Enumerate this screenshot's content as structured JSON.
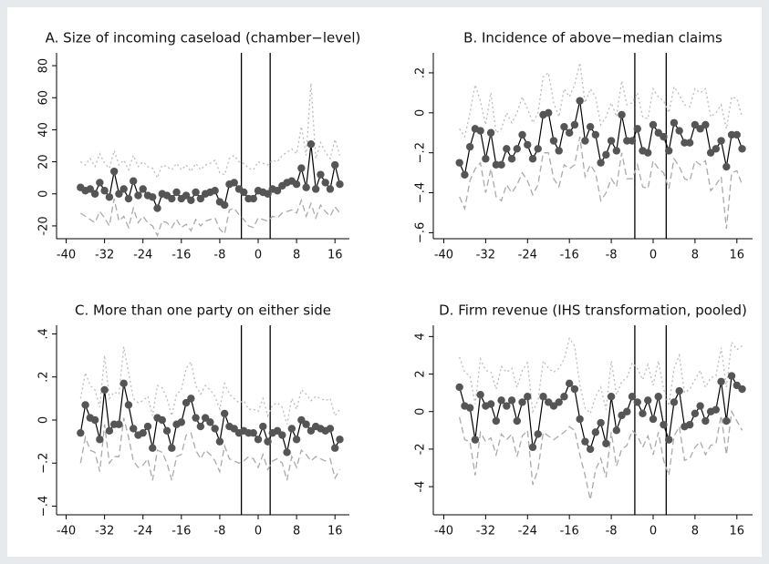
{
  "chart_data": [
    {
      "type": "line",
      "title": "A. Size of incoming caseload (chamber−level)",
      "x": [
        -37,
        -36,
        -35,
        -34,
        -33,
        -32,
        -31,
        -30,
        -29,
        -28,
        -27,
        -26,
        -25,
        -24,
        -23,
        -22,
        -21,
        -20,
        -19,
        -18,
        -17,
        -16,
        -15,
        -14,
        -13,
        -12,
        -11,
        -10,
        -9,
        -8,
        -7,
        -6,
        -5,
        -4,
        -3,
        -2,
        -1,
        0,
        1,
        2,
        3,
        4,
        5,
        6,
        7,
        8,
        9,
        10,
        11,
        12,
        13,
        14,
        15,
        16,
        17
      ],
      "series": [
        {
          "color": "#555555",
          "line": "solid",
          "marker": true,
          "values": [
            4,
            2,
            3,
            0,
            7,
            2,
            -2,
            14,
            0,
            3,
            -3,
            8,
            -1,
            3,
            -1,
            -2,
            -9,
            0,
            -1,
            -3,
            1,
            -3,
            -1,
            -4,
            1,
            -3,
            0,
            1,
            2,
            -5,
            -7,
            6,
            7,
            3,
            1,
            -3,
            -3,
            2,
            1,
            0,
            3,
            2,
            5,
            7,
            8,
            6,
            16,
            4,
            31,
            3,
            12,
            7,
            3,
            18,
            6
          ]
        },
        {
          "color": "#bbbbbb",
          "line": "dotted",
          "marker": false,
          "values": [
            20,
            18,
            22,
            17,
            25,
            19,
            16,
            27,
            18,
            21,
            15,
            24,
            17,
            20,
            17,
            16,
            10,
            18,
            17,
            15,
            19,
            15,
            18,
            14,
            19,
            15,
            18,
            19,
            21,
            13,
            12,
            22,
            24,
            20,
            19,
            16,
            15,
            20,
            19,
            18,
            21,
            20,
            24,
            26,
            28,
            25,
            42,
            24,
            69,
            22,
            32,
            26,
            22,
            34,
            24
          ]
        },
        {
          "color": "#aaaaaa",
          "line": "dashed",
          "marker": false,
          "values": [
            -12,
            -14,
            -16,
            -18,
            -11,
            -15,
            -20,
            -3,
            -17,
            -14,
            -21,
            -9,
            -18,
            -14,
            -18,
            -20,
            -26,
            -17,
            -18,
            -21,
            -16,
            -21,
            -19,
            -23,
            -16,
            -20,
            -17,
            -16,
            -15,
            -22,
            -25,
            -10,
            -9,
            -13,
            -16,
            -20,
            -21,
            -15,
            -16,
            -17,
            -14,
            -15,
            -12,
            -11,
            -10,
            -12,
            -4,
            -14,
            -6,
            -15,
            -7,
            -11,
            -14,
            -8,
            -12
          ]
        }
      ],
      "xlim": [
        -42,
        19
      ],
      "ylim": [
        -28,
        88
      ],
      "xticks": [
        -40,
        -32,
        -24,
        -16,
        -8,
        0,
        8,
        16
      ],
      "yticks": [
        -20,
        0,
        20,
        40,
        60,
        80
      ],
      "vlines": [
        -3.5,
        2.5
      ]
    },
    {
      "type": "line",
      "title": "B. Incidence of above−median claims",
      "x": [
        -37,
        -36,
        -35,
        -34,
        -33,
        -32,
        -31,
        -30,
        -29,
        -28,
        -27,
        -26,
        -25,
        -24,
        -23,
        -22,
        -21,
        -20,
        -19,
        -18,
        -17,
        -16,
        -15,
        -14,
        -13,
        -12,
        -11,
        -10,
        -9,
        -8,
        -7,
        -6,
        -5,
        -4,
        -3,
        -2,
        -1,
        0,
        1,
        2,
        3,
        4,
        5,
        6,
        7,
        8,
        9,
        10,
        11,
        12,
        13,
        14,
        15,
        16,
        17
      ],
      "series": [
        {
          "color": "#555555",
          "line": "solid",
          "marker": true,
          "values": [
            -0.25,
            -0.31,
            -0.17,
            -0.08,
            -0.09,
            -0.23,
            -0.1,
            -0.26,
            -0.26,
            -0.18,
            -0.23,
            -0.18,
            -0.11,
            -0.16,
            -0.23,
            -0.18,
            -0.01,
            0,
            -0.14,
            -0.19,
            -0.07,
            -0.1,
            -0.06,
            0.06,
            -0.14,
            -0.07,
            -0.11,
            -0.25,
            -0.21,
            -0.14,
            -0.19,
            -0.01,
            -0.14,
            -0.14,
            -0.08,
            -0.19,
            -0.2,
            -0.06,
            -0.1,
            -0.12,
            -0.19,
            -0.05,
            -0.09,
            -0.15,
            -0.15,
            -0.06,
            -0.08,
            -0.06,
            -0.2,
            -0.18,
            -0.14,
            -0.27,
            -0.11,
            -0.11,
            -0.18
          ]
        },
        {
          "color": "#bbbbbb",
          "line": "dotted",
          "marker": false,
          "values": [
            -0.08,
            -0.12,
            0,
            0.14,
            0.06,
            -0.06,
            0.1,
            -0.1,
            -0.08,
            0,
            -0.05,
            0,
            0.08,
            0.02,
            -0.05,
            0,
            0.18,
            0.2,
            0.05,
            -0.02,
            0.12,
            0.08,
            0.14,
            0.25,
            0.05,
            0.12,
            0.08,
            -0.06,
            -0.02,
            0.05,
            -0.02,
            0.16,
            0.04,
            0.05,
            0.1,
            -0.02,
            -0.03,
            0.12,
            0.08,
            0.06,
            0,
            0.13,
            0.09,
            0.04,
            0.03,
            0.12,
            0.1,
            0.12,
            -0.02,
            0,
            0.04,
            -0.08,
            0.08,
            0.07,
            -0.02
          ]
        },
        {
          "color": "#aaaaaa",
          "line": "dashed",
          "marker": false,
          "values": [
            -0.42,
            -0.48,
            -0.34,
            -0.28,
            -0.25,
            -0.4,
            -0.28,
            -0.42,
            -0.44,
            -0.36,
            -0.4,
            -0.36,
            -0.3,
            -0.34,
            -0.41,
            -0.36,
            -0.2,
            -0.2,
            -0.33,
            -0.37,
            -0.26,
            -0.28,
            -0.26,
            -0.12,
            -0.32,
            -0.26,
            -0.3,
            -0.44,
            -0.4,
            -0.33,
            -0.37,
            -0.2,
            -0.33,
            -0.33,
            -0.26,
            -0.37,
            -0.38,
            -0.24,
            -0.28,
            -0.3,
            -0.38,
            -0.23,
            -0.27,
            -0.33,
            -0.34,
            -0.24,
            -0.26,
            -0.24,
            -0.39,
            -0.36,
            -0.32,
            -0.58,
            -0.3,
            -0.29,
            -0.36
          ]
        }
      ],
      "xlim": [
        -42,
        19
      ],
      "ylim": [
        -0.63,
        0.3
      ],
      "xticks": [
        -40,
        -32,
        -24,
        -16,
        -8,
        0,
        8,
        16
      ],
      "yticks": [
        {
          "value": -0.6,
          "label": "−.6"
        },
        {
          "value": -0.4,
          "label": "−.4"
        },
        {
          "value": -0.2,
          "label": "−.2"
        },
        0,
        {
          "value": 0.2,
          "label": ".2"
        }
      ],
      "vlines": [
        -3.5,
        2.5
      ]
    },
    {
      "type": "line",
      "title": "C. More than one party on either side",
      "x": [
        -37,
        -36,
        -35,
        -34,
        -33,
        -32,
        -31,
        -30,
        -29,
        -28,
        -27,
        -26,
        -25,
        -24,
        -23,
        -22,
        -21,
        -20,
        -19,
        -18,
        -17,
        -16,
        -15,
        -14,
        -13,
        -12,
        -11,
        -10,
        -9,
        -8,
        -7,
        -6,
        -5,
        -4,
        -3,
        -2,
        -1,
        0,
        1,
        2,
        3,
        4,
        5,
        6,
        7,
        8,
        9,
        10,
        11,
        12,
        13,
        14,
        15,
        16,
        17
      ],
      "series": [
        {
          "color": "#555555",
          "line": "solid",
          "marker": true,
          "values": [
            -0.06,
            0.07,
            0.01,
            0,
            -0.09,
            0.14,
            -0.05,
            -0.02,
            -0.02,
            0.17,
            0.07,
            -0.04,
            -0.07,
            -0.06,
            -0.03,
            -0.13,
            0.01,
            0,
            -0.05,
            -0.13,
            -0.02,
            -0.01,
            0.08,
            0.1,
            0.01,
            -0.03,
            0.01,
            -0.01,
            -0.04,
            -0.1,
            0.03,
            -0.03,
            -0.04,
            -0.06,
            -0.05,
            -0.06,
            -0.06,
            -0.09,
            -0.03,
            -0.1,
            -0.06,
            -0.05,
            -0.07,
            -0.15,
            -0.04,
            -0.09,
            0,
            -0.02,
            -0.05,
            -0.03,
            -0.04,
            -0.05,
            -0.04,
            -0.13,
            -0.09
          ]
        },
        {
          "color": "#bbbbbb",
          "line": "dotted",
          "marker": false,
          "values": [
            0.1,
            0.22,
            0.16,
            0.14,
            0.06,
            0.3,
            0.1,
            0.13,
            0.12,
            0.34,
            0.22,
            0.1,
            0.08,
            0.09,
            0.11,
            0.02,
            0.16,
            0.15,
            0.1,
            0.02,
            0.12,
            0.14,
            0.24,
            0.27,
            0.16,
            0.12,
            0.16,
            0.14,
            0.11,
            0.05,
            0.17,
            0.12,
            0.1,
            0.08,
            0.09,
            0.05,
            0.05,
            0.04,
            0.1,
            0.02,
            0.07,
            0.08,
            0.06,
            -0.02,
            0.1,
            0.05,
            0.14,
            0.12,
            0.09,
            0.11,
            0.1,
            0.09,
            0.1,
            0.02,
            0.05
          ]
        },
        {
          "color": "#aaaaaa",
          "line": "dashed",
          "marker": false,
          "values": [
            -0.2,
            -0.08,
            -0.14,
            -0.15,
            -0.24,
            -0.02,
            -0.2,
            -0.17,
            -0.17,
            0.01,
            -0.08,
            -0.19,
            -0.22,
            -0.21,
            -0.18,
            -0.28,
            -0.14,
            -0.15,
            -0.2,
            -0.28,
            -0.17,
            -0.16,
            -0.07,
            -0.06,
            -0.14,
            -0.18,
            -0.14,
            -0.16,
            -0.19,
            -0.24,
            -0.12,
            -0.18,
            -0.19,
            -0.2,
            -0.19,
            -0.17,
            -0.18,
            -0.22,
            -0.16,
            -0.23,
            -0.19,
            -0.18,
            -0.2,
            -0.28,
            -0.17,
            -0.22,
            -0.14,
            -0.16,
            -0.19,
            -0.17,
            -0.18,
            -0.19,
            -0.18,
            -0.27,
            -0.23
          ]
        }
      ],
      "xlim": [
        -42,
        19
      ],
      "ylim": [
        -0.44,
        0.44
      ],
      "xticks": [
        -40,
        -32,
        -24,
        -16,
        -8,
        0,
        8,
        16
      ],
      "yticks": [
        {
          "value": -0.4,
          "label": "−.4"
        },
        {
          "value": -0.2,
          "label": "−.2"
        },
        0,
        {
          "value": 0.2,
          "label": ".2"
        },
        {
          "value": 0.4,
          "label": ".4"
        }
      ],
      "vlines": [
        -3.5,
        2.5
      ]
    },
    {
      "type": "line",
      "title": "D. Firm revenue (IHS transformation, pooled)",
      "x": [
        -37,
        -36,
        -35,
        -34,
        -33,
        -32,
        -31,
        -30,
        -29,
        -28,
        -27,
        -26,
        -25,
        -24,
        -23,
        -22,
        -21,
        -20,
        -19,
        -18,
        -17,
        -16,
        -15,
        -14,
        -13,
        -12,
        -11,
        -10,
        -9,
        -8,
        -7,
        -6,
        -5,
        -4,
        -3,
        -2,
        -1,
        0,
        1,
        2,
        3,
        4,
        5,
        6,
        7,
        8,
        9,
        10,
        11,
        12,
        13,
        14,
        15,
        16,
        17
      ],
      "series": [
        {
          "color": "#555555",
          "line": "solid",
          "marker": true,
          "values": [
            1.3,
            0.3,
            0.2,
            -1.5,
            0.9,
            0.3,
            0.4,
            -0.5,
            0.6,
            0.3,
            0.6,
            -0.5,
            0.5,
            0.8,
            -1.9,
            -1.2,
            0.8,
            0.5,
            0.3,
            0.5,
            0.8,
            1.5,
            1.2,
            -0.4,
            -1.6,
            -2,
            -1.1,
            -0.6,
            -1.7,
            0.8,
            -1,
            -0.2,
            0,
            0.8,
            0.5,
            -0.1,
            0.6,
            -0.4,
            0.8,
            -0.7,
            -1.5,
            0.5,
            1.1,
            -0.8,
            -0.7,
            -0.1,
            0.3,
            -0.5,
            0,
            0.1,
            1.6,
            -0.5,
            1.9,
            1.4,
            1.2
          ]
        },
        {
          "color": "#bbbbbb",
          "line": "dotted",
          "marker": false,
          "values": [
            2.9,
            2.1,
            1.9,
            0.4,
            2.8,
            2.2,
            2.1,
            1.2,
            2.4,
            2.1,
            2.3,
            1.3,
            2.2,
            2.6,
            0,
            0.6,
            2.7,
            2.3,
            2.1,
            2.3,
            2.8,
            3.9,
            3.5,
            1.4,
            0.2,
            -0.1,
            0.8,
            1.3,
            0.1,
            2.7,
            0.9,
            1.6,
            1.8,
            2.6,
            2.3,
            1.7,
            2.5,
            1.4,
            2.7,
            1.2,
            0.3,
            2.3,
            3,
            1,
            1.2,
            1.7,
            2.2,
            1.3,
            1.8,
            1.9,
            3.4,
            1.3,
            3.7,
            3.3,
            3.5
          ]
        },
        {
          "color": "#aaaaaa",
          "line": "dashed",
          "marker": false,
          "values": [
            -0.3,
            -1.5,
            -1.6,
            -3.4,
            -1.1,
            -1.6,
            -1.4,
            -2.3,
            -1.2,
            -1.5,
            -1.2,
            -2.4,
            -1.3,
            -1,
            -3.9,
            -3.1,
            -1.1,
            -1.3,
            -1.5,
            -1.3,
            -1.1,
            -0.8,
            -1,
            -2.3,
            -3.4,
            -4.7,
            -3.1,
            -2.5,
            -3.5,
            -1.1,
            -2.9,
            -2,
            -1.8,
            -1,
            -1.3,
            -1.9,
            -1.3,
            -2.3,
            -1.1,
            -2.6,
            -3.4,
            -1.3,
            -0.8,
            -2.6,
            -2.5,
            -1.9,
            -1.6,
            -2.3,
            -1.8,
            -1.7,
            -0.2,
            -2.3,
            0,
            -0.5,
            -1
          ]
        }
      ],
      "xlim": [
        -42,
        19
      ],
      "ylim": [
        -5.5,
        4.6
      ],
      "xticks": [
        -40,
        -32,
        -24,
        -16,
        -8,
        0,
        8,
        16
      ],
      "yticks": [
        -4,
        -2,
        0,
        2,
        4
      ],
      "vlines": [
        -3.5,
        2.5
      ]
    }
  ]
}
